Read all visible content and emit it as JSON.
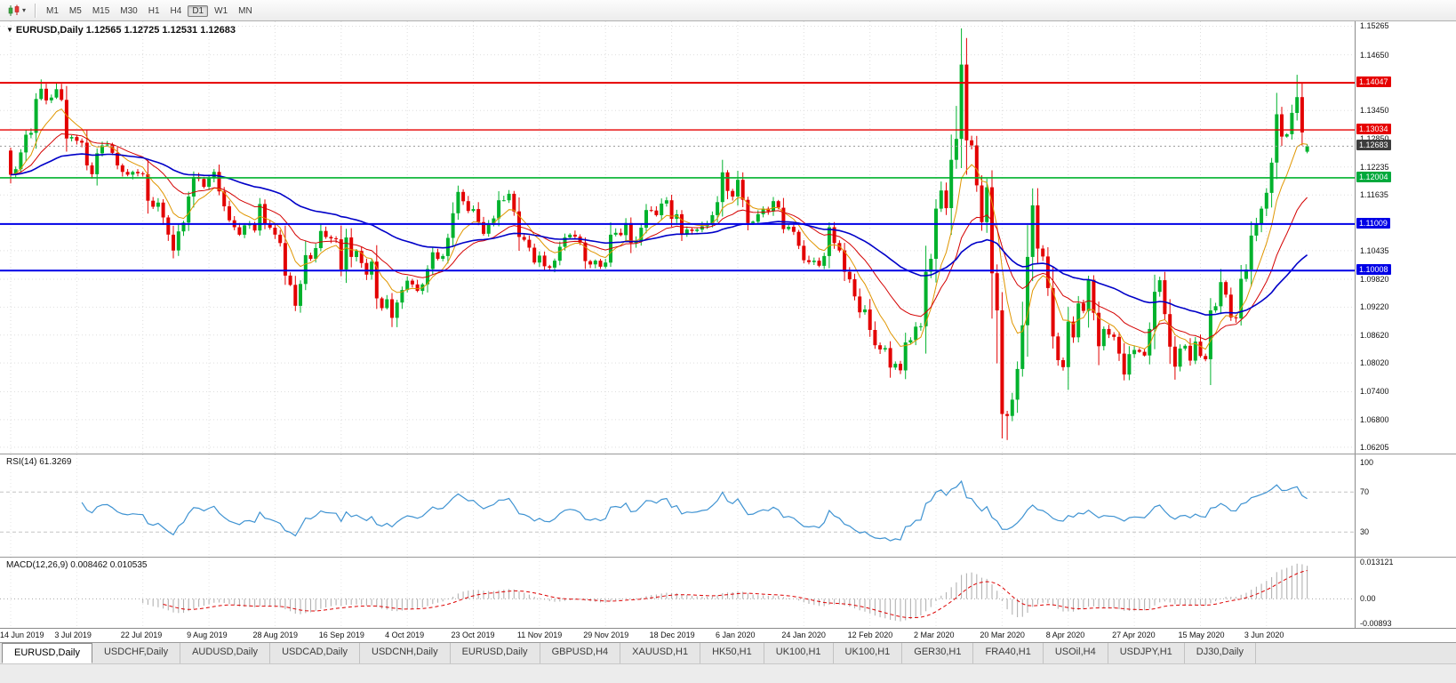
{
  "toolbar": {
    "chart_type_icon": "candlestick-chart-icon",
    "dropdown_icon": "chevron-down-icon",
    "dropdown_glyph": "▾",
    "timeframes": [
      "M1",
      "M5",
      "M15",
      "M30",
      "H1",
      "H4",
      "D1",
      "W1",
      "MN"
    ],
    "active_timeframe": "D1"
  },
  "chart": {
    "title_marker": "▼",
    "title": "EURUSD,Daily 1.12565 1.12725 1.12531 1.12683"
  },
  "chart_data": {
    "main": {
      "type": "candlestick",
      "symbol": "EURUSD",
      "timeframe": "Daily",
      "up_color": "#00b22d",
      "down_color": "#e30000",
      "label_every": 13,
      "x_labels": [
        "14 Jun 2019",
        "3 Jul 2019",
        "22 Jul 2019",
        "9 Aug 2019",
        "28 Aug 2019",
        "16 Sep 2019",
        "4 Oct 2019",
        "23 Oct 2019",
        "11 Nov 2019",
        "29 Nov 2019",
        "18 Dec 2019",
        "6 Jan 2020",
        "24 Jan 2020",
        "12 Feb 2020",
        "2 Mar 2020",
        "20 Mar 2020",
        "8 Apr 2020",
        "27 Apr 2020",
        "15 May 2020",
        "3 Jun 2020"
      ],
      "price_range": {
        "max": 1.1537,
        "min": 1.0607
      },
      "first_open": 1.1259,
      "last_ohlc": [
        1.12565,
        1.12725,
        1.12531,
        1.12683
      ],
      "current_price": 1.12683,
      "closes": [
        1.1207,
        1.1219,
        1.1255,
        1.1293,
        1.1297,
        1.137,
        1.1392,
        1.1367,
        1.1373,
        1.1391,
        1.1368,
        1.1285,
        1.1288,
        1.128,
        1.1276,
        1.1227,
        1.1208,
        1.1253,
        1.127,
        1.1272,
        1.1254,
        1.1227,
        1.1213,
        1.1207,
        1.1213,
        1.121,
        1.1208,
        1.1151,
        1.1138,
        1.1147,
        1.1115,
        1.1078,
        1.1044,
        1.1085,
        1.1104,
        1.116,
        1.1202,
        1.1198,
        1.1181,
        1.1199,
        1.1213,
        1.1171,
        1.1139,
        1.1109,
        1.1094,
        1.1078,
        1.1098,
        1.11,
        1.1087,
        1.1144,
        1.1101,
        1.1093,
        1.1078,
        1.106,
        1.099,
        1.097,
        1.0925,
        1.0972,
        1.1034,
        1.1026,
        1.1049,
        1.1086,
        1.1073,
        1.107,
        1.1068,
        1.1003,
        1.1072,
        1.103,
        1.1043,
        1.1017,
        1.0992,
        1.102,
        1.0941,
        1.092,
        1.0939,
        1.0899,
        1.0932,
        1.0959,
        1.0979,
        1.0971,
        1.0957,
        1.0971,
        1.1004,
        1.104,
        1.1026,
        1.1032,
        1.1071,
        1.1124,
        1.117,
        1.115,
        1.1129,
        1.1133,
        1.1105,
        1.108,
        1.1099,
        1.1113,
        1.1152,
        1.1152,
        1.1166,
        1.1128,
        1.1073,
        1.1067,
        1.105,
        1.1018,
        1.1033,
        1.101,
        1.1007,
        1.1022,
        1.1052,
        1.1072,
        1.1078,
        1.1074,
        1.1061,
        1.1021,
        1.1014,
        1.1022,
        1.1009,
        1.1018,
        1.1078,
        1.1082,
        1.1077,
        1.1103,
        1.106,
        1.1064,
        1.1093,
        1.1131,
        1.113,
        1.112,
        1.1145,
        1.1152,
        1.1112,
        1.1122,
        1.1078,
        1.1089,
        1.1086,
        1.1089,
        1.1096,
        1.1099,
        1.112,
        1.1148,
        1.1212,
        1.1172,
        1.116,
        1.1196,
        1.1153,
        1.1103,
        1.1106,
        1.1122,
        1.1134,
        1.1128,
        1.115,
        1.1136,
        1.109,
        1.1095,
        1.1084,
        1.1054,
        1.1023,
        1.1019,
        1.1022,
        1.1011,
        1.1032,
        1.1094,
        1.106,
        1.1044,
        1.0998,
        1.0982,
        1.0945,
        1.0911,
        1.0917,
        1.0873,
        1.084,
        1.0831,
        1.0834,
        1.0792,
        1.08,
        1.0786,
        1.0846,
        1.0851,
        1.088,
        1.0881,
        1.0998,
        1.1026,
        1.1134,
        1.1173,
        1.1135,
        1.1239,
        1.1284,
        1.1444,
        1.1281,
        1.127,
        1.1184,
        1.1105,
        1.118,
        1.0995,
        1.0915,
        1.0692,
        1.0688,
        1.0723,
        1.0789,
        1.0883,
        1.103,
        1.1141,
        1.1048,
        1.1031,
        1.0963,
        1.0859,
        1.0808,
        1.0793,
        1.0891,
        1.0857,
        1.093,
        1.0914,
        1.0981,
        1.091,
        1.0838,
        1.0875,
        1.0863,
        1.0858,
        1.0822,
        1.0777,
        1.0821,
        1.083,
        1.0826,
        1.0818,
        1.0875,
        1.0955,
        1.098,
        1.0907,
        1.0837,
        1.0794,
        1.0833,
        1.0839,
        1.0807,
        1.0848,
        1.0817,
        1.081,
        1.0915,
        1.0924,
        1.0976,
        1.0949,
        1.09,
        1.0898,
        1.0983,
        1.1003,
        1.1076,
        1.1101,
        1.1134,
        1.1168,
        1.1233,
        1.1337,
        1.1289,
        1.1294,
        1.134,
        1.1374,
        1.1298,
        1.12683
      ],
      "extremes": [
        {
          "i": 6,
          "h": 1.1412
        },
        {
          "i": 9,
          "h": 1.1406
        },
        {
          "i": 32,
          "l": 1.1027
        },
        {
          "i": 76,
          "l": 1.0879
        },
        {
          "i": 140,
          "h": 1.1239
        },
        {
          "i": 175,
          "l": 1.0778
        },
        {
          "i": 186,
          "h": 1.1355
        },
        {
          "i": 187,
          "h": 1.1495
        },
        {
          "i": 194,
          "l": 1.0801
        },
        {
          "i": 195,
          "l": 1.0655
        },
        {
          "i": 196,
          "l": 1.0636
        },
        {
          "i": 201,
          "h": 1.1147
        },
        {
          "i": 225,
          "h": 1.0972
        },
        {
          "i": 229,
          "l": 1.0766
        },
        {
          "i": 253,
          "h": 1.1422
        }
      ],
      "moving_averages": [
        {
          "period": 8,
          "color": "#e09600",
          "width": 1
        },
        {
          "period": 20,
          "color": "#d40000",
          "width": 1
        },
        {
          "period": 55,
          "color": "#0000c8",
          "width": 1.6
        }
      ],
      "hlines": [
        {
          "price": 1.14047,
          "color": "#e60000",
          "w": 2,
          "label": "1.14047"
        },
        {
          "price": 1.13034,
          "color": "#e60000",
          "w": 1.4,
          "label": "1.13034"
        },
        {
          "price": 1.12004,
          "color": "#00b22d",
          "w": 1.6,
          "label": "1.12004"
        },
        {
          "price": 1.11009,
          "color": "#0000e6",
          "w": 2,
          "label": "1.11009"
        },
        {
          "price": 1.10008,
          "color": "#0000e6",
          "w": 2,
          "label": "1.10008"
        }
      ],
      "y_ticks": [
        {
          "label": "1.15265"
        },
        {
          "label": "1.14650"
        },
        {
          "label": "1.14047",
          "badge": "#e60000"
        },
        {
          "label": "1.13450"
        },
        {
          "label": "1.13034",
          "badge": "#e60000"
        },
        {
          "label": "1.12850"
        },
        {
          "label": "1.12683",
          "badge": "#3d3d3d"
        },
        {
          "label": "1.12235"
        },
        {
          "label": "1.12004",
          "badge": "#00a93c"
        },
        {
          "label": "1.11635"
        },
        {
          "label": "1.11009",
          "badge": "#0000e6"
        },
        {
          "label": "1.10435"
        },
        {
          "label": "1.10008",
          "badge": "#0000e6"
        },
        {
          "label": "1.09820"
        },
        {
          "label": "1.09220"
        },
        {
          "label": "1.08620"
        },
        {
          "label": "1.08020"
        },
        {
          "label": "1.07400"
        },
        {
          "label": "1.06800"
        },
        {
          "label": "1.06205"
        }
      ]
    },
    "rsi": {
      "type": "line",
      "label": "RSI(14) 61.3269",
      "period": 14,
      "current_value": 61.3269,
      "color": "#3f93d2",
      "scale": {
        "max": 105,
        "min": 8
      },
      "levels": [
        {
          "v": 100,
          "label": "100",
          "line": false
        },
        {
          "v": 70,
          "label": "70",
          "line": true
        },
        {
          "v": 30,
          "label": "30",
          "line": true
        }
      ]
    },
    "macd": {
      "type": "histogram+line",
      "label": "MACD(12,26,9) 0.008462 0.010535",
      "fast": 12,
      "slow": 26,
      "signal": 9,
      "current_macd": 0.008462,
      "current_signal": 0.010535,
      "hist_color": "#b2b2b2",
      "signal_color": "#dd0000",
      "scale": {
        "max": 0.013121,
        "min": -0.00893
      },
      "axis": [
        {
          "v": 0.013121,
          "label": "0.013121"
        },
        {
          "v": 0,
          "label": "0.00"
        },
        {
          "v": -0.00893,
          "label": "-0.00893"
        }
      ]
    }
  },
  "bottom_tabs": {
    "active_index": 0,
    "tabs": [
      "EURUSD,Daily",
      "USDCHF,Daily",
      "AUDUSD,Daily",
      "USDCAD,Daily",
      "USDCNH,Daily",
      "EURUSD,Daily",
      "GBPUSD,H4",
      "XAUUSD,H1",
      "HK50,H1",
      "UK100,H1",
      "UK100,H1",
      "GER30,H1",
      "FRA40,H1",
      "USOil,H4",
      "USDJPY,H1",
      "DJ30,Daily"
    ]
  }
}
